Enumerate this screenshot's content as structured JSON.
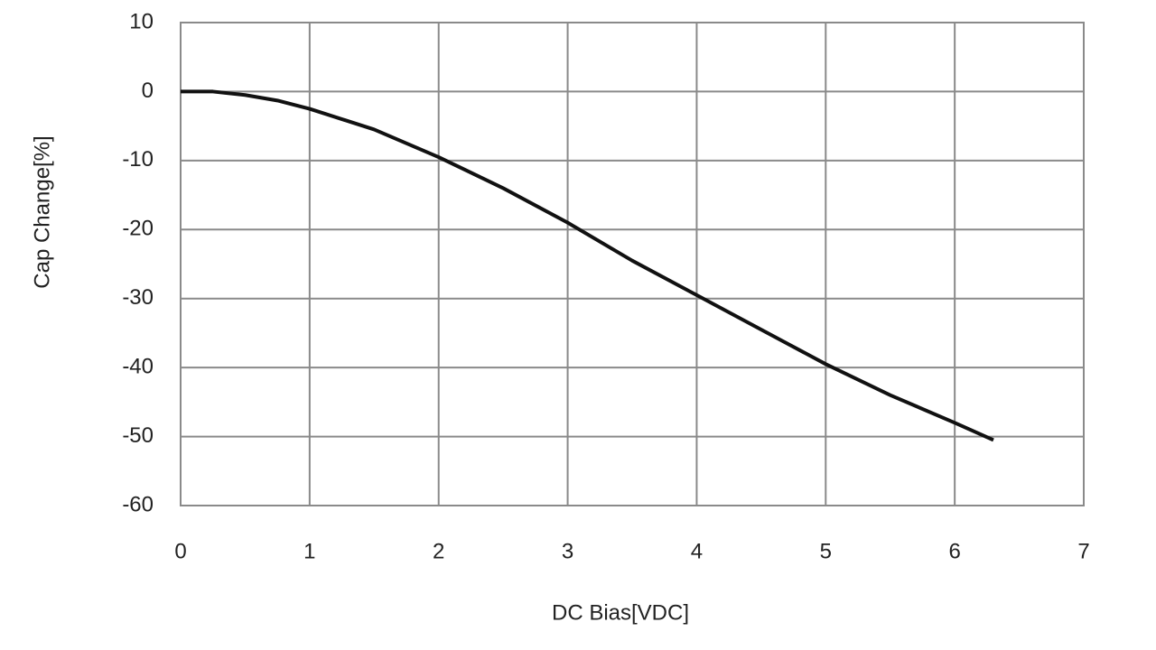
{
  "chart_data": {
    "type": "line",
    "x_label": "DC Bias[VDC]",
    "y_label": "Cap Change[%]",
    "x": [
      0,
      0.25,
      0.5,
      0.75,
      1,
      1.5,
      2,
      2.5,
      3,
      3.5,
      4,
      4.5,
      5,
      5.5,
      6,
      6.3
    ],
    "series": [
      {
        "color": "#111111",
        "values": [
          0,
          0,
          -0.5,
          -1.3,
          -2.5,
          -5.5,
          -9.5,
          -14,
          -19,
          -24.5,
          -29.5,
          -34.5,
          -39.5,
          -44,
          -48,
          -50.5
        ]
      }
    ],
    "xlim": [
      0,
      7
    ],
    "xticks": [
      0,
      1,
      2,
      3,
      4,
      5,
      6,
      7
    ],
    "ylim": [
      -60,
      10
    ],
    "yticks": [
      10,
      0,
      -10,
      -20,
      -30,
      -40,
      -50,
      -60
    ],
    "grid": true
  }
}
